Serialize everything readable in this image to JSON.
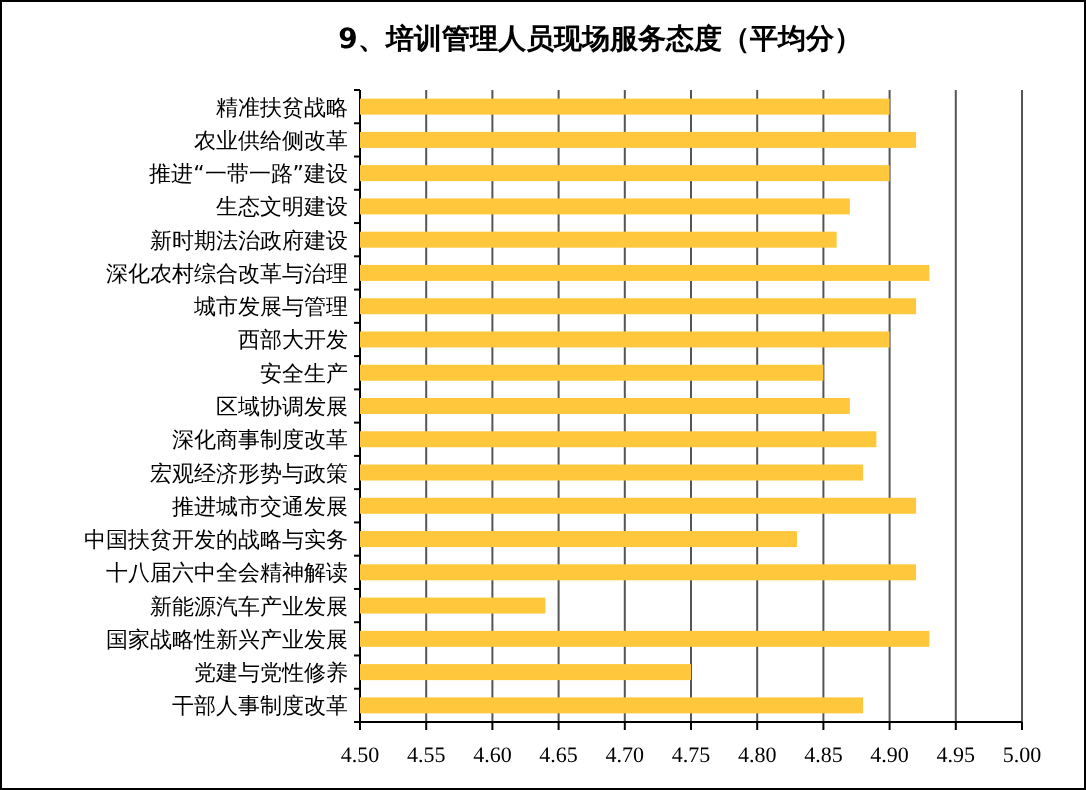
{
  "chart_data": {
    "type": "bar",
    "orientation": "horizontal",
    "title": "9、培训管理人员现场服务态度（平均分）",
    "categories": [
      "精准扶贫战略",
      "农业供给侧改革",
      "推进“一带一路”建设",
      "生态文明建设",
      "新时期法治政府建设",
      "深化农村综合改革与治理",
      "城市发展与管理",
      "西部大开发",
      "安全生产",
      "区域协调发展",
      "深化商事制度改革",
      "宏观经济形势与政策",
      "推进城市交通发展",
      "中国扶贫开发的战略与实务",
      "十八届六中全会精神解读",
      "新能源汽车产业发展",
      "国家战略性新兴产业发展",
      "党建与党性修养",
      "干部人事制度改革"
    ],
    "values": [
      4.9,
      4.92,
      4.9,
      4.87,
      4.86,
      4.93,
      4.92,
      4.9,
      4.85,
      4.87,
      4.89,
      4.88,
      4.92,
      4.83,
      4.92,
      4.64,
      4.93,
      4.75,
      4.88
    ],
    "color": "#ffc83c",
    "xlim": [
      4.5,
      5.0
    ],
    "xticks": [
      {
        "value": 4.5,
        "label": "4.50"
      },
      {
        "value": 4.55,
        "label": "4.55"
      },
      {
        "value": 4.6,
        "label": "4.60"
      },
      {
        "value": 4.65,
        "label": "4.65"
      },
      {
        "value": 4.7,
        "label": "4.70"
      },
      {
        "value": 4.75,
        "label": "4.75"
      },
      {
        "value": 4.8,
        "label": "4.80"
      },
      {
        "value": 4.85,
        "label": "4.85"
      },
      {
        "value": 4.9,
        "label": "4.90"
      },
      {
        "value": 4.95,
        "label": "4.95"
      },
      {
        "value": 5.0,
        "label": "5.00"
      }
    ],
    "grid": "x"
  }
}
